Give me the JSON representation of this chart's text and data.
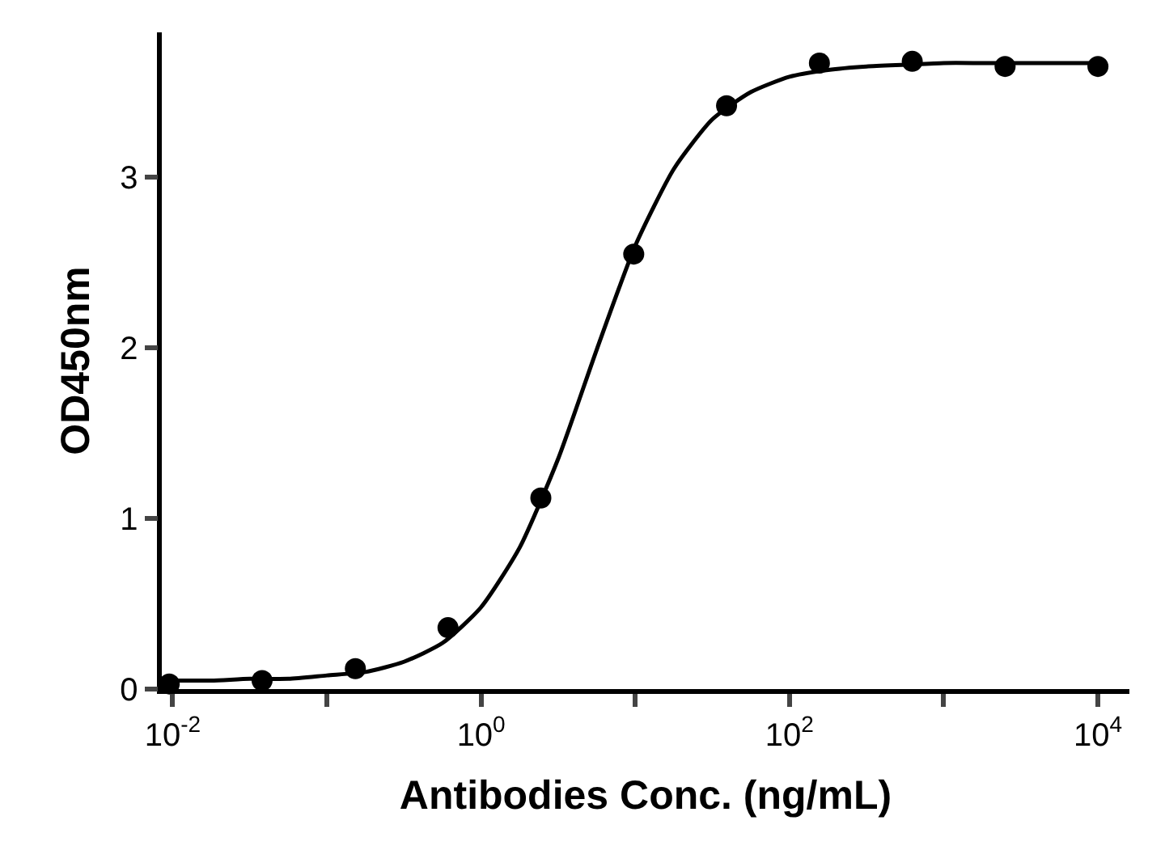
{
  "chart_data": {
    "type": "scatter",
    "xlabel": "Antibodies Conc. (ng/mL)",
    "ylabel": "OD450nm",
    "log": "x",
    "xlim": [
      0.0085,
      16000
    ],
    "ylim": [
      0,
      3.85
    ],
    "xticks": [
      {
        "value": 0.01,
        "label": "10$^{-2}$"
      },
      {
        "value": 0.1,
        "label": null
      },
      {
        "value": 1,
        "label": "10$^{0}$"
      },
      {
        "value": 10,
        "label": null
      },
      {
        "value": 100,
        "label": "10$^{2}$"
      },
      {
        "value": 1000,
        "label": null
      },
      {
        "value": 10000,
        "label": "10$^{4}$"
      }
    ],
    "yticks": [
      0,
      1,
      2,
      3
    ],
    "grid": false,
    "marker": "circle",
    "series": [
      {
        "color": "#000000",
        "x": [
          0.0095,
          0.038,
          0.153,
          0.61,
          2.44,
          9.77,
          39.06,
          156.25,
          625,
          2500,
          10000
        ],
        "values": [
          0.03,
          0.05,
          0.12,
          0.36,
          1.12,
          2.55,
          3.42,
          3.67,
          3.68,
          3.65,
          3.65
        ]
      },
      {
        "type": "line",
        "color": "#000000",
        "marker": "none",
        "line_style": "solid",
        "x": [
          0.01,
          0.0178,
          0.0316,
          0.0562,
          0.1,
          0.178,
          0.316,
          0.562,
          1,
          1.78,
          3.16,
          5.62,
          10,
          17.8,
          31.6,
          56.2,
          100,
          178,
          316,
          562,
          1000,
          1780,
          3160,
          5620,
          10000
        ],
        "values": [
          0.05,
          0.05,
          0.06,
          0.06,
          0.08,
          0.1,
          0.16,
          0.27,
          0.48,
          0.83,
          1.35,
          1.99,
          2.6,
          3.05,
          3.34,
          3.5,
          3.59,
          3.63,
          3.65,
          3.66,
          3.67,
          3.67,
          3.67,
          3.67,
          3.67
        ]
      }
    ]
  }
}
